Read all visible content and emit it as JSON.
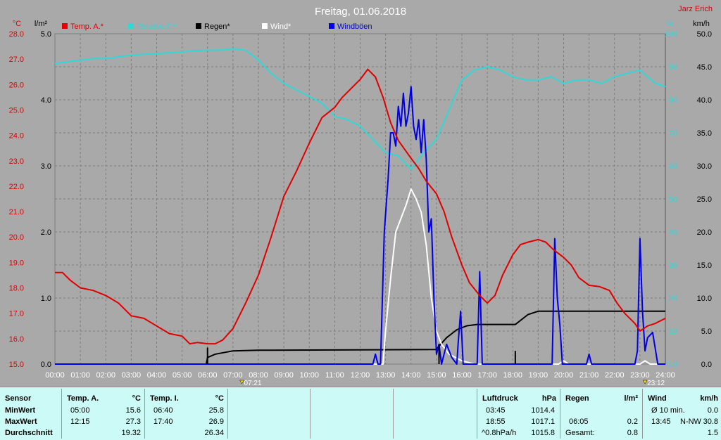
{
  "title": "Freitag, 01.06.2018",
  "author": "Jarz Erich",
  "colors": {
    "temp": "#e00000",
    "humidity": "#30d8d8",
    "rain": "#000000",
    "wind": "#ffffff",
    "gusts": "#0000e0",
    "bg": "#a9a9a9",
    "grid": "#7d7d7d"
  },
  "chart_data": {
    "type": "line",
    "title": "Freitag, 01.06.2018",
    "x_unit": "hh:mm",
    "xlim": [
      0,
      24
    ],
    "x_ticks": [
      "00:00",
      "01:00",
      "02:00",
      "03:00",
      "04:00",
      "05:00",
      "06:00",
      "07:00",
      "08:00",
      "09:00",
      "10:00",
      "11:00",
      "12:00",
      "13:00",
      "14:00",
      "15:00",
      "16:00",
      "17:00",
      "18:00",
      "19:00",
      "20:00",
      "21:00",
      "22:00",
      "23:00",
      "24:00"
    ],
    "axes": {
      "temp": {
        "unit": "°C",
        "min": 15,
        "max": 28,
        "ticks": [
          "15.0",
          "16.0",
          "17.0",
          "18.0",
          "19.0",
          "20.0",
          "21.0",
          "22.0",
          "23.0",
          "24.0",
          "25.0",
          "26.0",
          "27.0",
          "28.0"
        ]
      },
      "rain": {
        "unit": "l/m²",
        "min": 0,
        "max": 5,
        "ticks": [
          "0.0",
          "1.0",
          "2.0",
          "3.0",
          "4.0",
          "5.0"
        ]
      },
      "humidity": {
        "unit": "%",
        "min": 0,
        "max": 100,
        "ticks": [
          "0.0",
          "10",
          "20",
          "30",
          "40",
          "50",
          "60",
          "70",
          "80",
          "90",
          "100"
        ]
      },
      "wind": {
        "unit": "km/h",
        "min": 0,
        "max": 50,
        "ticks": [
          "0.0",
          "5.0",
          "10.0",
          "15.0",
          "20.0",
          "25.0",
          "30.0",
          "35.0",
          "40.0",
          "45.0",
          "50.0"
        ]
      }
    },
    "series": [
      {
        "name": "Temp. A.*",
        "axis": "temp",
        "color": "#e00000",
        "points": [
          [
            0,
            18.6
          ],
          [
            0.3,
            18.6
          ],
          [
            0.6,
            18.3
          ],
          [
            1.0,
            18.0
          ],
          [
            1.5,
            17.9
          ],
          [
            2.0,
            17.7
          ],
          [
            2.5,
            17.4
          ],
          [
            3.0,
            16.9
          ],
          [
            3.5,
            16.8
          ],
          [
            4.0,
            16.5
          ],
          [
            4.5,
            16.2
          ],
          [
            5.0,
            16.1
          ],
          [
            5.3,
            15.8
          ],
          [
            5.6,
            15.85
          ],
          [
            6.0,
            15.8
          ],
          [
            6.3,
            15.8
          ],
          [
            6.6,
            15.95
          ],
          [
            7.0,
            16.4
          ],
          [
            7.5,
            17.4
          ],
          [
            8.0,
            18.5
          ],
          [
            8.5,
            20.0
          ],
          [
            9.0,
            21.6
          ],
          [
            9.5,
            22.6
          ],
          [
            10.0,
            23.7
          ],
          [
            10.5,
            24.7
          ],
          [
            11.0,
            25.1
          ],
          [
            11.3,
            25.5
          ],
          [
            11.6,
            25.8
          ],
          [
            12.0,
            26.2
          ],
          [
            12.3,
            26.6
          ],
          [
            12.6,
            26.3
          ],
          [
            12.9,
            25.5
          ],
          [
            13.2,
            24.5
          ],
          [
            13.5,
            23.8
          ],
          [
            14.0,
            23.1
          ],
          [
            14.3,
            22.7
          ],
          [
            14.6,
            22.2
          ],
          [
            15.0,
            21.7
          ],
          [
            15.3,
            21.0
          ],
          [
            15.6,
            20.0
          ],
          [
            16.0,
            18.9
          ],
          [
            16.3,
            18.2
          ],
          [
            16.7,
            17.7
          ],
          [
            17.0,
            17.4
          ],
          [
            17.3,
            17.7
          ],
          [
            17.6,
            18.5
          ],
          [
            18.0,
            19.3
          ],
          [
            18.3,
            19.7
          ],
          [
            18.6,
            19.8
          ],
          [
            19.0,
            19.9
          ],
          [
            19.3,
            19.8
          ],
          [
            19.6,
            19.5
          ],
          [
            20.0,
            19.2
          ],
          [
            20.3,
            18.9
          ],
          [
            20.6,
            18.4
          ],
          [
            21.0,
            18.1
          ],
          [
            21.4,
            18.05
          ],
          [
            21.8,
            17.9
          ],
          [
            22.1,
            17.4
          ],
          [
            22.4,
            17.0
          ],
          [
            22.8,
            16.6
          ],
          [
            23.0,
            16.3
          ],
          [
            23.3,
            16.5
          ],
          [
            23.6,
            16.6
          ],
          [
            24,
            16.8
          ]
        ]
      },
      {
        "name": "Relative F.*",
        "axis": "humidity",
        "color": "#30d8d8",
        "points": [
          [
            0,
            91
          ],
          [
            0.5,
            91.5
          ],
          [
            1,
            92
          ],
          [
            1.5,
            92.5
          ],
          [
            2,
            92.5
          ],
          [
            2.5,
            93
          ],
          [
            3,
            93.5
          ],
          [
            4,
            94
          ],
          [
            5,
            94.5
          ],
          [
            5.5,
            94.8
          ],
          [
            6,
            95
          ],
          [
            6.5,
            95
          ],
          [
            7,
            95.5
          ],
          [
            7.5,
            95
          ],
          [
            8,
            92
          ],
          [
            8.5,
            88
          ],
          [
            9,
            85
          ],
          [
            9.5,
            83
          ],
          [
            10,
            81
          ],
          [
            10.5,
            79
          ],
          [
            11,
            75
          ],
          [
            11.5,
            74
          ],
          [
            12,
            72
          ],
          [
            12.5,
            68
          ],
          [
            13,
            64
          ],
          [
            13.5,
            63
          ],
          [
            14,
            59
          ],
          [
            14.5,
            64
          ],
          [
            15,
            68
          ],
          [
            15.5,
            77
          ],
          [
            16,
            86
          ],
          [
            16.5,
            89
          ],
          [
            17,
            90
          ],
          [
            17.5,
            89
          ],
          [
            18,
            87
          ],
          [
            18.5,
            86
          ],
          [
            19,
            86
          ],
          [
            19.5,
            87
          ],
          [
            20,
            85
          ],
          [
            20.5,
            86
          ],
          [
            21,
            86
          ],
          [
            21.5,
            85
          ],
          [
            22,
            87
          ],
          [
            22.5,
            88
          ],
          [
            23,
            89
          ],
          [
            23.3,
            87
          ],
          [
            23.6,
            85
          ],
          [
            24,
            84
          ]
        ]
      },
      {
        "name": "Regen*",
        "axis": "rain",
        "color": "#000000",
        "type": "area-step",
        "points": [
          [
            0,
            0
          ],
          [
            5.95,
            0
          ],
          [
            6.0,
            0.1
          ],
          [
            6.3,
            0.15
          ],
          [
            7.0,
            0.2
          ],
          [
            8.0,
            0.21
          ],
          [
            15.0,
            0.22
          ],
          [
            15.05,
            0.25
          ],
          [
            15.4,
            0.4
          ],
          [
            15.8,
            0.52
          ],
          [
            16.2,
            0.58
          ],
          [
            16.6,
            0.6
          ],
          [
            18.1,
            0.6
          ],
          [
            18.2,
            0.63
          ],
          [
            18.6,
            0.75
          ],
          [
            19.0,
            0.8
          ],
          [
            24,
            0.8
          ]
        ]
      },
      {
        "name": "Wind*",
        "axis": "wind",
        "color": "#ffffff",
        "points": [
          [
            0,
            0
          ],
          [
            12.9,
            0
          ],
          [
            13.0,
            5
          ],
          [
            13.2,
            13
          ],
          [
            13.4,
            20
          ],
          [
            13.6,
            22
          ],
          [
            13.8,
            24
          ],
          [
            14.0,
            26.5
          ],
          [
            14.2,
            25
          ],
          [
            14.4,
            23
          ],
          [
            14.6,
            18
          ],
          [
            14.8,
            10
          ],
          [
            15.0,
            5
          ],
          [
            15.2,
            3
          ],
          [
            15.5,
            1.5
          ],
          [
            16.0,
            0.5
          ],
          [
            16.5,
            0
          ],
          [
            19.8,
            0
          ],
          [
            20.0,
            0.5
          ],
          [
            20.2,
            0
          ],
          [
            23.0,
            0
          ],
          [
            23.2,
            0.5
          ],
          [
            23.4,
            0
          ],
          [
            24,
            0
          ]
        ]
      },
      {
        "name": "Windböen",
        "axis": "wind",
        "color": "#0000e0",
        "points": [
          [
            0,
            0
          ],
          [
            12.5,
            0
          ],
          [
            12.6,
            1.5
          ],
          [
            12.7,
            0
          ],
          [
            12.8,
            0
          ],
          [
            12.95,
            20
          ],
          [
            13.1,
            28
          ],
          [
            13.2,
            35
          ],
          [
            13.3,
            35
          ],
          [
            13.4,
            33
          ],
          [
            13.5,
            39
          ],
          [
            13.6,
            36
          ],
          [
            13.7,
            41
          ],
          [
            13.8,
            36
          ],
          [
            13.9,
            38
          ],
          [
            14.0,
            42
          ],
          [
            14.1,
            36
          ],
          [
            14.2,
            34
          ],
          [
            14.3,
            37
          ],
          [
            14.4,
            32
          ],
          [
            14.5,
            37
          ],
          [
            14.6,
            31
          ],
          [
            14.7,
            20
          ],
          [
            14.8,
            22
          ],
          [
            14.9,
            10
          ],
          [
            15.0,
            1.5
          ],
          [
            15.1,
            3
          ],
          [
            15.2,
            0
          ],
          [
            15.4,
            3
          ],
          [
            15.6,
            1
          ],
          [
            15.8,
            0
          ],
          [
            15.85,
            3
          ],
          [
            15.95,
            8
          ],
          [
            16.05,
            0
          ],
          [
            16.6,
            0
          ],
          [
            16.7,
            14
          ],
          [
            16.8,
            0
          ],
          [
            19.55,
            0
          ],
          [
            19.65,
            19
          ],
          [
            19.75,
            10
          ],
          [
            19.85,
            6
          ],
          [
            19.95,
            0
          ],
          [
            20.9,
            0
          ],
          [
            21.0,
            1.5
          ],
          [
            21.1,
            0
          ],
          [
            22.8,
            0
          ],
          [
            22.9,
            2
          ],
          [
            23.0,
            19
          ],
          [
            23.1,
            8
          ],
          [
            23.2,
            2
          ],
          [
            23.3,
            4
          ],
          [
            23.5,
            4.8
          ],
          [
            23.7,
            0
          ],
          [
            24,
            0
          ]
        ]
      }
    ],
    "markers": [
      {
        "x": 7.35,
        "label": "07:21"
      },
      {
        "x": 23.2,
        "label": "23:12"
      }
    ]
  },
  "legend": [
    {
      "label": "Temp. A.*",
      "color": "#e00000"
    },
    {
      "label": "Relative F.*",
      "color": "#30d8d8"
    },
    {
      "label": "Regen*",
      "color": "#000000"
    },
    {
      "label": "Wind*",
      "color": "#ffffff"
    },
    {
      "label": "Windböen",
      "color": "#0000e0"
    }
  ],
  "stats": {
    "rows": [
      "Sensor",
      "MinWert",
      "MaxWert",
      "Durchschnitt"
    ],
    "temp_a": {
      "title": "Temp. A.",
      "unit": "°C",
      "min_time": "05:00",
      "min": "15.6",
      "max_time": "12:15",
      "max": "27.3",
      "avg": "19.32"
    },
    "temp_i": {
      "title": "Temp. I.",
      "unit": "°C",
      "min_time": "06:40",
      "min": "25.8",
      "max_time": "17:40",
      "max": "26.9",
      "avg": "26.34"
    },
    "pressure": {
      "title": "Luftdruck",
      "unit": "hPa",
      "min_time": "03:45",
      "min": "1014.4",
      "max_time": "18:55",
      "max": "1017.1",
      "trend": "^0.8hPa/h",
      "avg": "1015.8"
    },
    "rain": {
      "title": "Regen",
      "unit": "l/m²",
      "max_time": "06:05",
      "max": "0.2",
      "total_label": "Gesamt:",
      "total": "0.8"
    },
    "wind": {
      "title": "Wind",
      "unit": "km/h",
      "avg_label": "Ø 10 min.",
      "avg_val": "0.0",
      "max_time": "13:45",
      "max_dir": "N-NW",
      "max": "30.8",
      "avg": "1.5"
    }
  }
}
